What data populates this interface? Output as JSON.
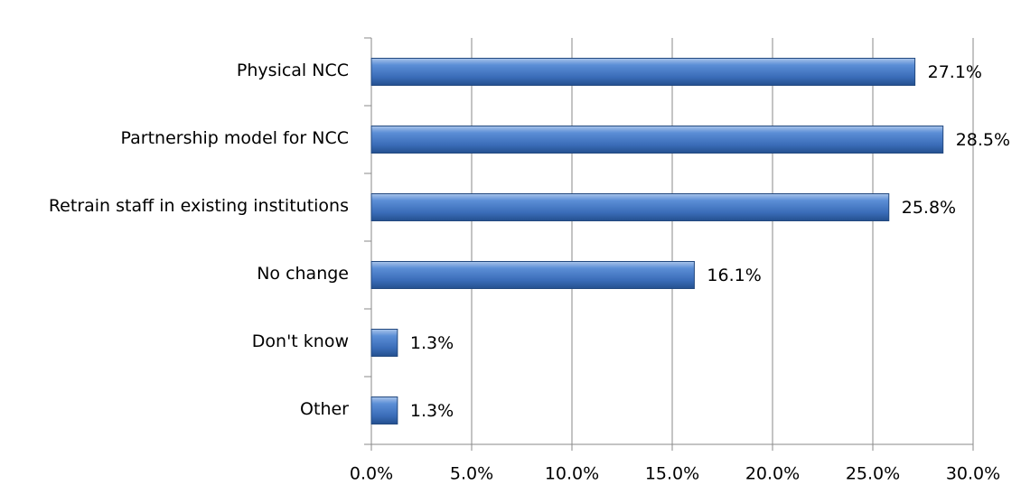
{
  "chart_data": {
    "type": "bar",
    "orientation": "horizontal",
    "categories": [
      "Physical NCC",
      "Partnership model for NCC",
      "Retrain staff in existing institutions",
      "No change",
      "Don't know",
      "Other"
    ],
    "values": [
      27.1,
      28.5,
      25.8,
      16.1,
      1.3,
      1.3
    ],
    "value_labels": [
      "27.1%",
      "28.5%",
      "25.8%",
      "16.1%",
      "1.3%",
      "1.3%"
    ],
    "color": "#3f73bf",
    "xlim": [
      0,
      30
    ],
    "xticks": [
      {
        "value": 0,
        "label": "0.0%"
      },
      {
        "value": 5,
        "label": "5.0%"
      },
      {
        "value": 10,
        "label": "10.0%"
      },
      {
        "value": 15,
        "label": "15.0%"
      },
      {
        "value": 20,
        "label": "20.0%"
      },
      {
        "value": 25,
        "label": "25.0%"
      },
      {
        "value": 30,
        "label": "30.0%"
      }
    ],
    "grid": true
  }
}
